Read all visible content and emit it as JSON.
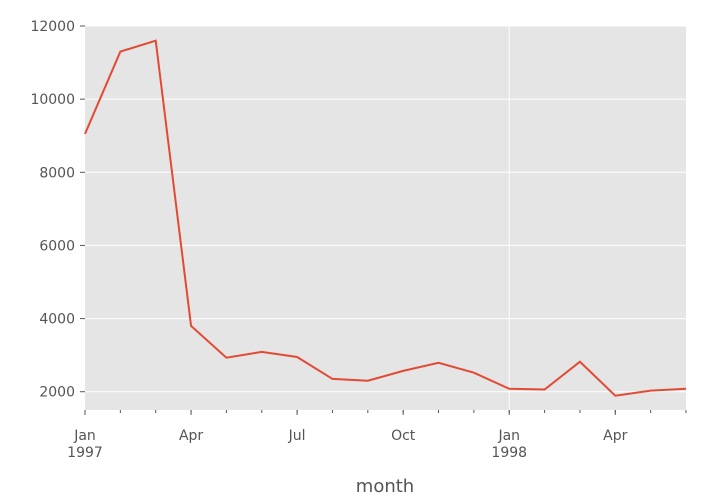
{
  "chart_data": {
    "type": "line",
    "xlabel": "month",
    "x": [
      "1997-01",
      "1997-02",
      "1997-03",
      "1997-04",
      "1997-05",
      "1997-06",
      "1997-07",
      "1997-08",
      "1997-09",
      "1997-10",
      "1997-11",
      "1997-12",
      "1998-01",
      "1998-02",
      "1998-03",
      "1998-04",
      "1998-05",
      "1998-06"
    ],
    "series": [
      {
        "color": "#e24a33",
        "values": [
          9050,
          11300,
          11600,
          3800,
          2930,
          3090,
          2950,
          2350,
          2300,
          2570,
          2790,
          2520,
          2080,
          2060,
          2820,
          1890,
          2030,
          2080
        ]
      }
    ],
    "ylim": [
      1500,
      12000
    ],
    "yticks": [
      2000,
      4000,
      6000,
      8000,
      10000,
      12000
    ],
    "xticks": [
      {
        "value": "1997-01",
        "label": "Jan\n1997"
      },
      {
        "value": "1997-04",
        "label": "Apr"
      },
      {
        "value": "1997-07",
        "label": "Jul"
      },
      {
        "value": "1997-10",
        "label": "Oct"
      },
      {
        "value": "1998-01",
        "label": "Jan\n1998"
      },
      {
        "value": "1998-04",
        "label": "Apr"
      }
    ],
    "grid": true
  }
}
